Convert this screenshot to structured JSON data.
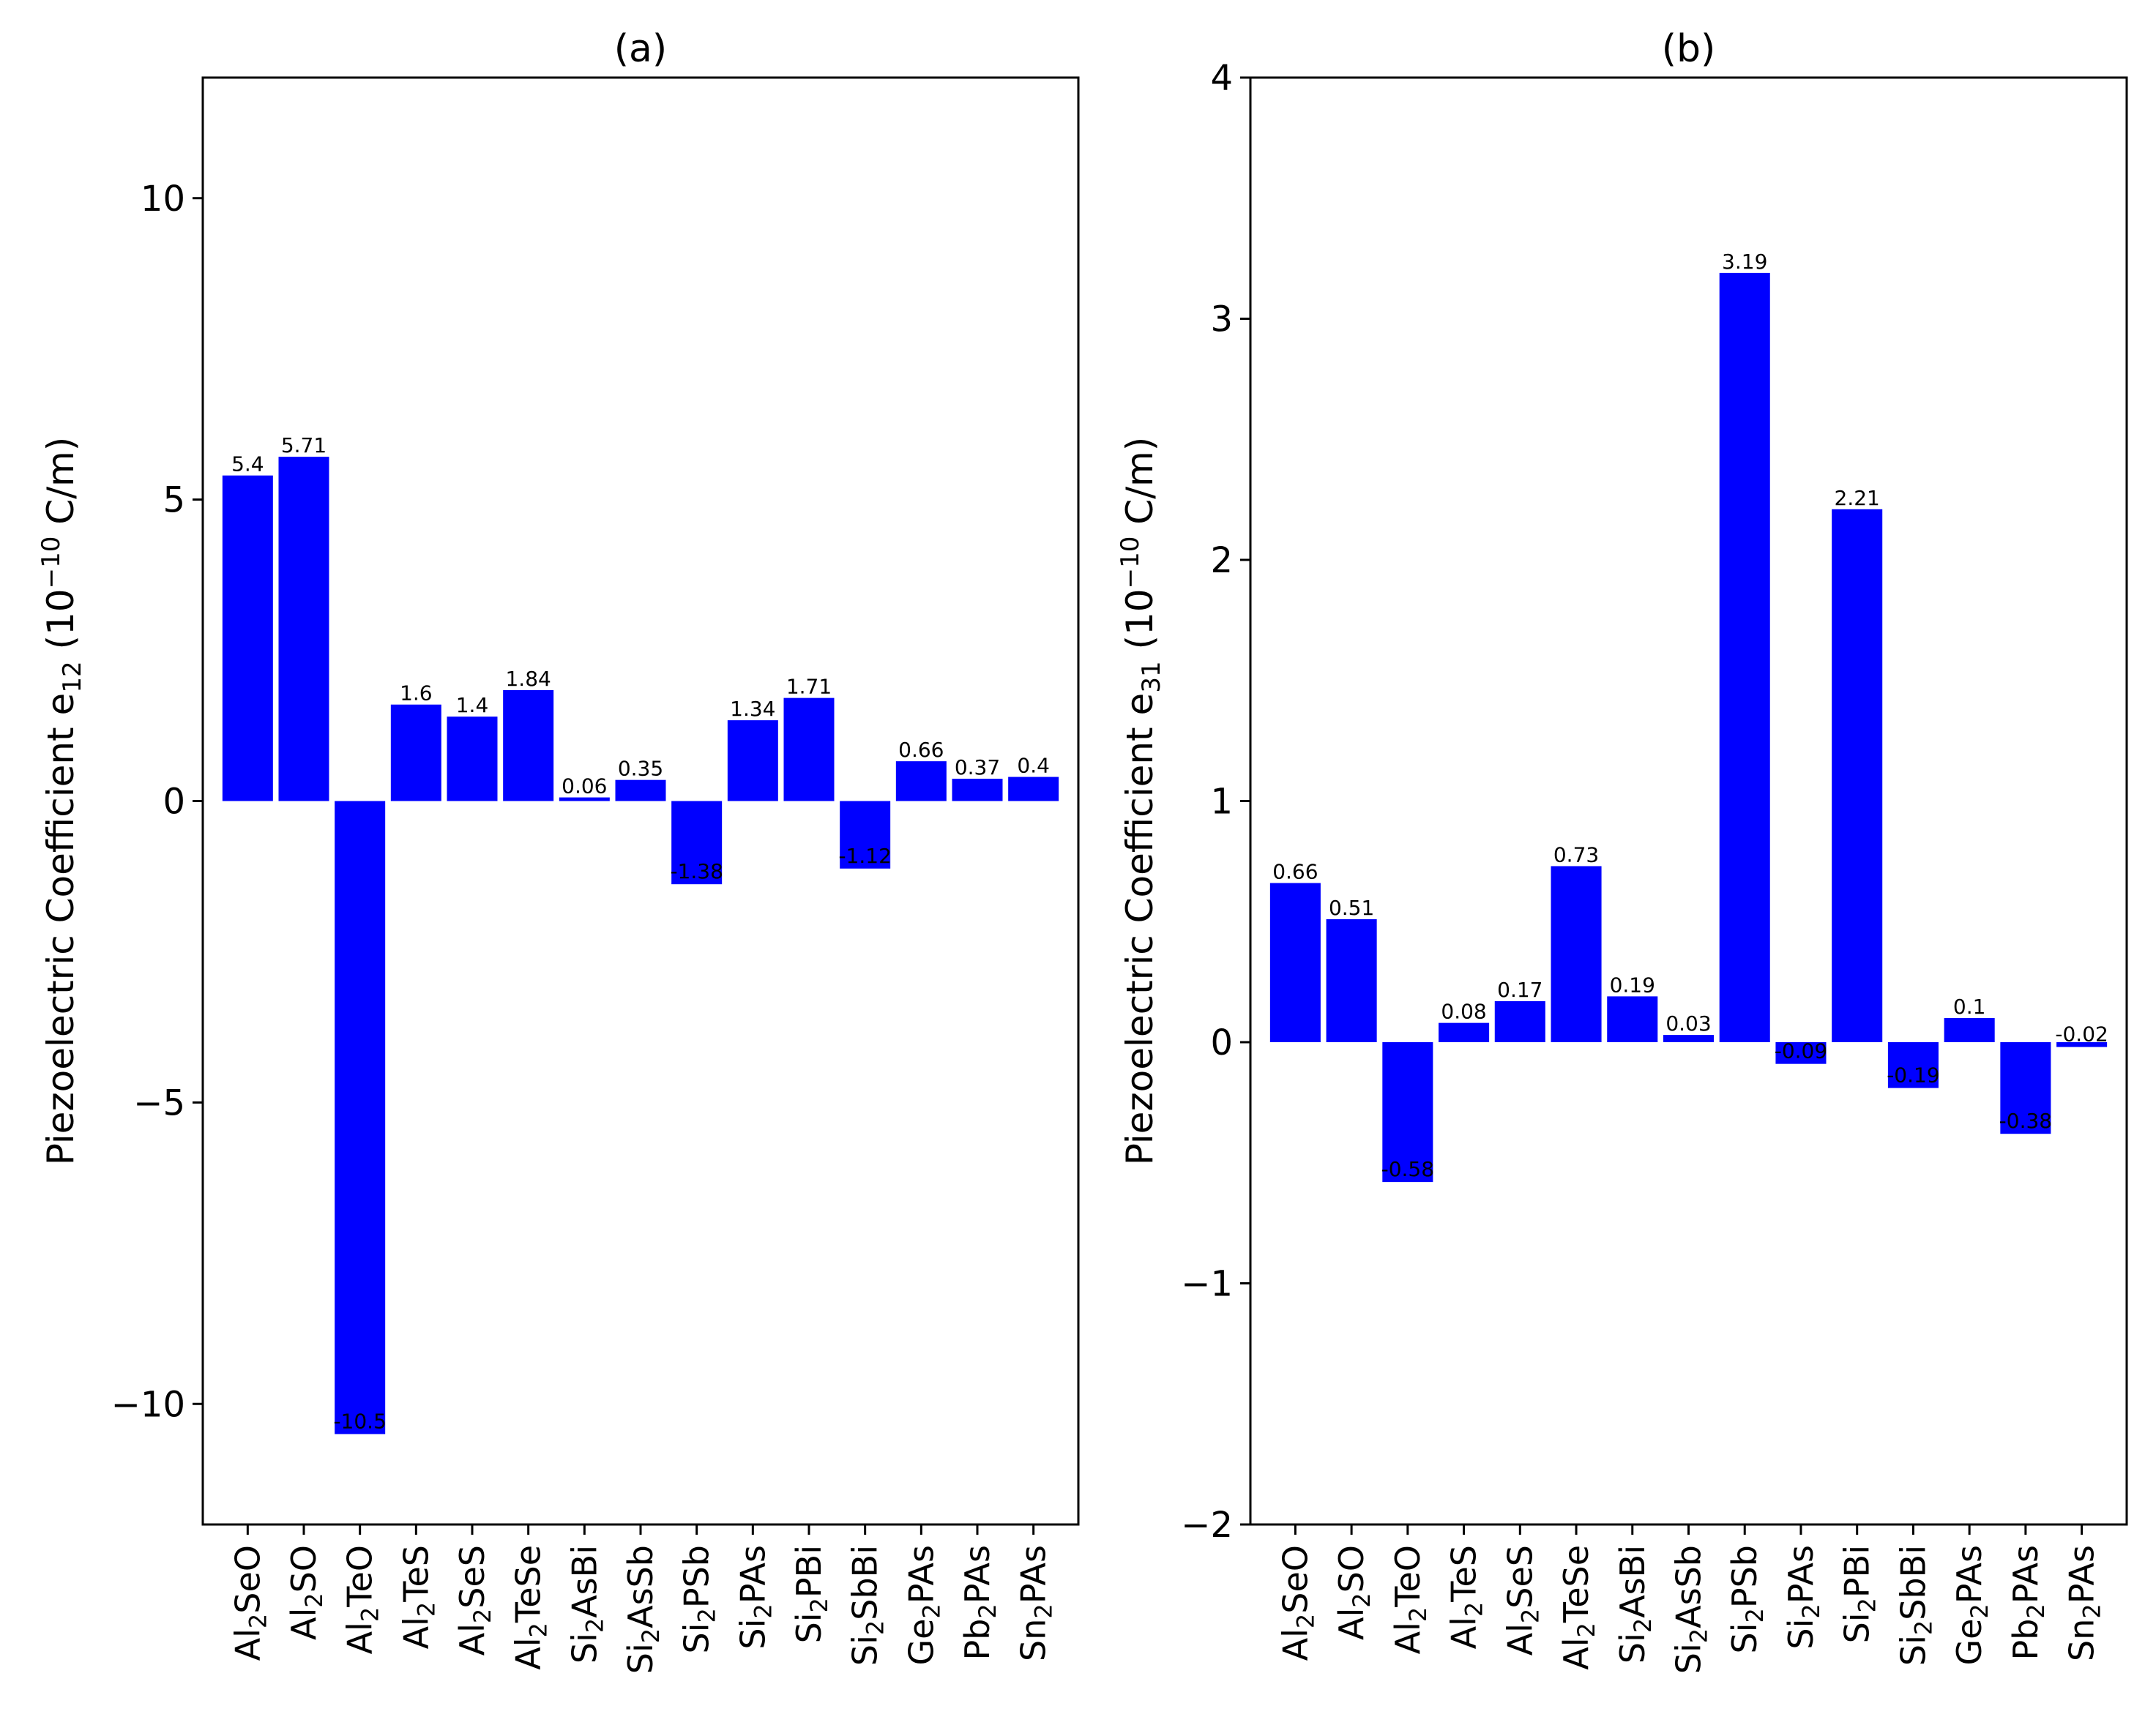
{
  "chart_data": [
    {
      "type": "bar",
      "title": "(a)",
      "ylabel": {
        "prefix": "Piezoelectric Coefficient e",
        "subscript": "12",
        "middle": " (10",
        "superscript": "−10",
        "suffix": " C/m)"
      },
      "ylim": [
        -12,
        12
      ],
      "yticks": [
        -10,
        -5,
        0,
        5,
        10
      ],
      "ytick_labels": [
        "−10",
        "−5",
        "0",
        "5",
        "10"
      ],
      "grid": false,
      "bar_color": "#0000ff",
      "categories": [
        [
          [
            "Al",
            ""
          ],
          [
            "2",
            "sub"
          ],
          [
            "SeO",
            ""
          ]
        ],
        [
          [
            "Al",
            ""
          ],
          [
            "2",
            "sub"
          ],
          [
            "SO",
            ""
          ]
        ],
        [
          [
            "Al",
            ""
          ],
          [
            "2",
            "sub"
          ],
          [
            "TeO",
            ""
          ]
        ],
        [
          [
            "Al",
            ""
          ],
          [
            "2",
            "sub"
          ],
          [
            "TeS",
            ""
          ]
        ],
        [
          [
            "Al",
            ""
          ],
          [
            "2",
            "sub"
          ],
          [
            "SeS",
            ""
          ]
        ],
        [
          [
            "Al",
            ""
          ],
          [
            "2",
            "sub"
          ],
          [
            "TeSe",
            ""
          ]
        ],
        [
          [
            "Si",
            ""
          ],
          [
            "2",
            "sub"
          ],
          [
            "AsBi",
            ""
          ]
        ],
        [
          [
            "Si",
            ""
          ],
          [
            "2",
            "sub"
          ],
          [
            "AsSb",
            ""
          ]
        ],
        [
          [
            "Si",
            ""
          ],
          [
            "2",
            "sub"
          ],
          [
            "PSb",
            ""
          ]
        ],
        [
          [
            "Si",
            ""
          ],
          [
            "2",
            "sub"
          ],
          [
            "PAs",
            ""
          ]
        ],
        [
          [
            "Si",
            ""
          ],
          [
            "2",
            "sub"
          ],
          [
            "PBi",
            ""
          ]
        ],
        [
          [
            "Si",
            ""
          ],
          [
            "2",
            "sub"
          ],
          [
            "SbBi",
            ""
          ]
        ],
        [
          [
            "Ge",
            ""
          ],
          [
            "2",
            "sub"
          ],
          [
            "PAs",
            ""
          ]
        ],
        [
          [
            "Pb",
            ""
          ],
          [
            "2",
            "sub"
          ],
          [
            "PAs",
            ""
          ]
        ],
        [
          [
            "Sn",
            ""
          ],
          [
            "2",
            "sub"
          ],
          [
            "PAs",
            ""
          ]
        ]
      ],
      "values": [
        5.4,
        5.71,
        -10.5,
        1.6,
        1.4,
        1.84,
        0.06,
        0.35,
        -1.38,
        1.34,
        1.71,
        -1.12,
        0.66,
        0.37,
        0.4
      ],
      "value_labels": [
        "5.4",
        "5.71",
        "-10.5",
        "1.6",
        "1.4",
        "1.84",
        "0.06",
        "0.35",
        "-1.38",
        "1.34",
        "1.71",
        "-1.12",
        "0.66",
        "0.37",
        "0.4"
      ]
    },
    {
      "type": "bar",
      "title": "(b)",
      "ylabel": {
        "prefix": "Piezoelectric Coefficient e",
        "subscript": "31",
        "middle": " (10",
        "superscript": "−10",
        "suffix": " C/m)"
      },
      "ylim": [
        -2,
        4
      ],
      "yticks": [
        -2,
        -1,
        0,
        1,
        2,
        3,
        4
      ],
      "ytick_labels": [
        "−2",
        "−1",
        "0",
        "1",
        "2",
        "3",
        "4"
      ],
      "grid": false,
      "bar_color": "#0000ff",
      "categories": [
        [
          [
            "Al",
            ""
          ],
          [
            "2",
            "sub"
          ],
          [
            "SeO",
            ""
          ]
        ],
        [
          [
            "Al",
            ""
          ],
          [
            "2",
            "sub"
          ],
          [
            "SO",
            ""
          ]
        ],
        [
          [
            "Al",
            ""
          ],
          [
            "2",
            "sub"
          ],
          [
            "TeO",
            ""
          ]
        ],
        [
          [
            "Al",
            ""
          ],
          [
            "2",
            "sub"
          ],
          [
            "TeS",
            ""
          ]
        ],
        [
          [
            "Al",
            ""
          ],
          [
            "2",
            "sub"
          ],
          [
            "SeS",
            ""
          ]
        ],
        [
          [
            "Al",
            ""
          ],
          [
            "2",
            "sub"
          ],
          [
            "TeSe",
            ""
          ]
        ],
        [
          [
            "Si",
            ""
          ],
          [
            "2",
            "sub"
          ],
          [
            "AsBi",
            ""
          ]
        ],
        [
          [
            "Si",
            ""
          ],
          [
            "2",
            "sub"
          ],
          [
            "AsSb",
            ""
          ]
        ],
        [
          [
            "Si",
            ""
          ],
          [
            "2",
            "sub"
          ],
          [
            "PSb",
            ""
          ]
        ],
        [
          [
            "Si",
            ""
          ],
          [
            "2",
            "sub"
          ],
          [
            "PAs",
            ""
          ]
        ],
        [
          [
            "Si",
            ""
          ],
          [
            "2",
            "sub"
          ],
          [
            "PBi",
            ""
          ]
        ],
        [
          [
            "Si",
            ""
          ],
          [
            "2",
            "sub"
          ],
          [
            "SbBi",
            ""
          ]
        ],
        [
          [
            "Ge",
            ""
          ],
          [
            "2",
            "sub"
          ],
          [
            "PAs",
            ""
          ]
        ],
        [
          [
            "Pb",
            ""
          ],
          [
            "2",
            "sub"
          ],
          [
            "PAs",
            ""
          ]
        ],
        [
          [
            "Sn",
            ""
          ],
          [
            "2",
            "sub"
          ],
          [
            "PAs",
            ""
          ]
        ]
      ],
      "values": [
        0.66,
        0.51,
        -0.58,
        0.08,
        0.17,
        0.73,
        0.19,
        0.03,
        3.19,
        -0.09,
        2.21,
        -0.19,
        0.1,
        -0.38,
        -0.02
      ],
      "value_labels": [
        "0.66",
        "0.51",
        "-0.58",
        "0.08",
        "0.17",
        "0.73",
        "0.19",
        "0.03",
        "3.19",
        "-0.09",
        "2.21",
        "-0.19",
        "0.1",
        "-0.38",
        "-0.02"
      ]
    }
  ]
}
